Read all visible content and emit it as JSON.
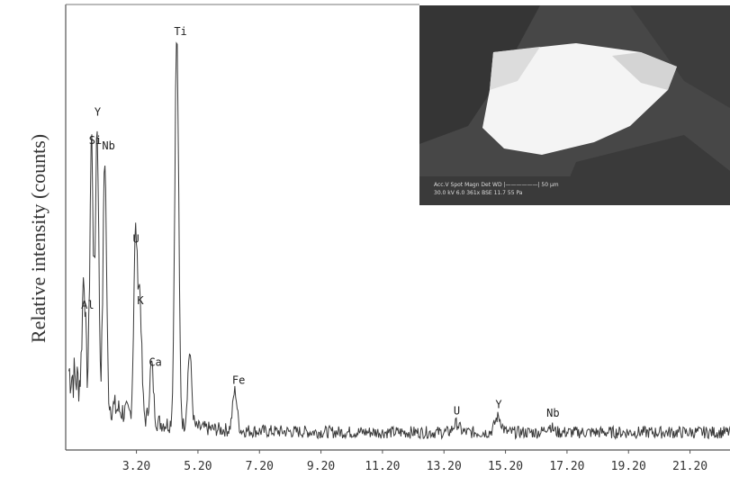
{
  "chart_data": {
    "type": "line",
    "title": "",
    "xlabel": "",
    "ylabel": "Relative intensity (counts)",
    "xlim": [
      0.9,
      22.5
    ],
    "ylim": [
      0,
      100
    ],
    "x_ticks": [
      "3.20",
      "5.20",
      "7.20",
      "9.20",
      "11.20",
      "13.20",
      "15.20",
      "17.20",
      "19.20",
      "21.20"
    ],
    "peaks": [
      {
        "label": "Al",
        "x": 1.49,
        "y": 30
      },
      {
        "label": "Si",
        "x": 1.74,
        "y": 62
      },
      {
        "label": "Y",
        "x": 1.92,
        "y": 66
      },
      {
        "label": "Nb",
        "x": 2.17,
        "y": 60
      },
      {
        "label": "U",
        "x": 3.17,
        "y": 45
      },
      {
        "label": "K",
        "x": 3.31,
        "y": 31
      },
      {
        "label": "Ca",
        "x": 3.69,
        "y": 17
      },
      {
        "label": "Ti",
        "x": 4.51,
        "y": 92
      },
      {
        "label": "Ti",
        "x": 4.93,
        "y": 21
      },
      {
        "label": "Fe",
        "x": 6.4,
        "y": 13
      },
      {
        "label": "U",
        "x": 13.6,
        "y": 6
      },
      {
        "label": "Y",
        "x": 14.96,
        "y": 7.5
      },
      {
        "label": "Nb",
        "x": 16.62,
        "y": 5.5
      }
    ],
    "background_level": 4,
    "grid": false,
    "legend": "none"
  },
  "inset": {
    "caption_row1": "Acc.V  Spot Magn   Det  WD |——————| 50 µm",
    "caption_row2": "30.0 kV 6.0   361x   BSE 11.7  55 Pa",
    "colors": {
      "background": "#4a4a4a",
      "grain": "#f2f2f2",
      "text": "#dddddd"
    }
  }
}
